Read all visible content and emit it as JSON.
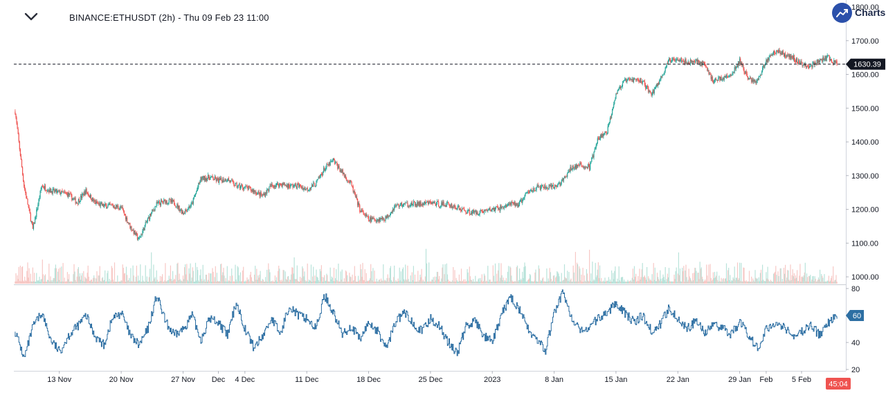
{
  "header": {
    "symbol": "BINANCE:ETHUSDT (2h) - Thu 09 Feb 23 11:00",
    "collapse_icon": "chevron-down-icon",
    "logo_icon": "trend-up-icon",
    "logo_text": "Charts",
    "logo_color": "#2b50aa"
  },
  "chart_data": [
    {
      "type": "candlestick",
      "symbol": "BINANCE:ETHUSDT",
      "interval": "2h",
      "y_ticks": [
        1000,
        1100,
        1200,
        1300,
        1400,
        1500,
        1600,
        1700,
        1800
      ],
      "y_tick_labels": [
        "1000.00",
        "1100.00",
        "1200.00",
        "1300.00",
        "1400.00",
        "1500.00",
        "1600.00",
        "1700.00",
        "1800.00"
      ],
      "ylim": [
        990,
        1800
      ],
      "x_labels": [
        {
          "label": "13 Nov",
          "day": 3
        },
        {
          "label": "20 Nov",
          "day": 10
        },
        {
          "label": "27 Nov",
          "day": 17
        },
        {
          "label": "Dec",
          "day": 21
        },
        {
          "label": "4 Dec",
          "day": 24
        },
        {
          "label": "11 Dec",
          "day": 31
        },
        {
          "label": "18 Dec",
          "day": 38
        },
        {
          "label": "25 Dec",
          "day": 45
        },
        {
          "label": "2023",
          "day": 52
        },
        {
          "label": "8 Jan",
          "day": 59
        },
        {
          "label": "15 Jan",
          "day": 66
        },
        {
          "label": "22 Jan",
          "day": 73
        },
        {
          "label": "29 Jan",
          "day": 80
        },
        {
          "label": "Feb",
          "day": 83
        },
        {
          "label": "5 Feb",
          "day": 87
        }
      ],
      "x_range_days": [
        -2.15,
        91.7
      ],
      "daily_close": [
        [
          -2,
          1490
        ],
        [
          -1,
          1270
        ],
        [
          0,
          1140
        ],
        [
          1,
          1270
        ],
        [
          2,
          1255
        ],
        [
          3,
          1250
        ],
        [
          4,
          1245
        ],
        [
          5,
          1220
        ],
        [
          6,
          1255
        ],
        [
          7,
          1220
        ],
        [
          8,
          1210
        ],
        [
          9,
          1210
        ],
        [
          10,
          1205
        ],
        [
          11,
          1150
        ],
        [
          12,
          1110
        ],
        [
          13,
          1170
        ],
        [
          14,
          1215
        ],
        [
          15,
          1225
        ],
        [
          16,
          1220
        ],
        [
          17,
          1190
        ],
        [
          18,
          1215
        ],
        [
          19,
          1290
        ],
        [
          20,
          1295
        ],
        [
          21,
          1285
        ],
        [
          22,
          1290
        ],
        [
          23,
          1270
        ],
        [
          24,
          1265
        ],
        [
          25,
          1255
        ],
        [
          26,
          1240
        ],
        [
          27,
          1270
        ],
        [
          28,
          1275
        ],
        [
          29,
          1270
        ],
        [
          30,
          1270
        ],
        [
          31,
          1260
        ],
        [
          32,
          1275
        ],
        [
          33,
          1320
        ],
        [
          34,
          1345
        ],
        [
          35,
          1310
        ],
        [
          36,
          1275
        ],
        [
          37,
          1200
        ],
        [
          38,
          1170
        ],
        [
          39,
          1170
        ],
        [
          40,
          1175
        ],
        [
          41,
          1210
        ],
        [
          42,
          1215
        ],
        [
          43,
          1215
        ],
        [
          44,
          1215
        ],
        [
          45,
          1220
        ],
        [
          46,
          1215
        ],
        [
          47,
          1215
        ],
        [
          48,
          1205
        ],
        [
          49,
          1195
        ],
        [
          50,
          1190
        ],
        [
          51,
          1195
        ],
        [
          52,
          1200
        ],
        [
          53,
          1205
        ],
        [
          54,
          1215
        ],
        [
          55,
          1215
        ],
        [
          56,
          1250
        ],
        [
          57,
          1265
        ],
        [
          58,
          1265
        ],
        [
          59,
          1265
        ],
        [
          60,
          1285
        ],
        [
          61,
          1325
        ],
        [
          62,
          1330
        ],
        [
          63,
          1325
        ],
        [
          64,
          1410
        ],
        [
          65,
          1430
        ],
        [
          66,
          1545
        ],
        [
          67,
          1580
        ],
        [
          68,
          1585
        ],
        [
          69,
          1580
        ],
        [
          70,
          1540
        ],
        [
          71,
          1585
        ],
        [
          72,
          1640
        ],
        [
          73,
          1650
        ],
        [
          74,
          1635
        ],
        [
          75,
          1640
        ],
        [
          76,
          1630
        ],
        [
          77,
          1580
        ],
        [
          78,
          1590
        ],
        [
          79,
          1595
        ],
        [
          80,
          1640
        ],
        [
          81,
          1585
        ],
        [
          82,
          1580
        ],
        [
          83,
          1640
        ],
        [
          84,
          1670
        ],
        [
          85,
          1660
        ],
        [
          86,
          1650
        ],
        [
          87,
          1630
        ],
        [
          88,
          1625
        ],
        [
          89,
          1640
        ],
        [
          90,
          1650
        ],
        [
          91,
          1630
        ]
      ],
      "last_price": 1630.39,
      "last_price_label": "1630.39",
      "colors": {
        "up": "#26a69a",
        "down": "#ef5350",
        "volume_up": "#b9e3da",
        "volume_down": "#f7c8c5"
      },
      "has_volume": true,
      "grid": false
    },
    {
      "type": "line",
      "name": "oscillator",
      "y_ticks": [
        20,
        40,
        60,
        80
      ],
      "y_tick_labels": [
        "20",
        "40",
        "60",
        "80"
      ],
      "ylim": [
        20,
        80
      ],
      "last_value": 60,
      "last_value_label": "60",
      "color": "#2d6fa3",
      "daily_values": [
        [
          -2,
          48
        ],
        [
          -1,
          28
        ],
        [
          0,
          52
        ],
        [
          1,
          62
        ],
        [
          2,
          42
        ],
        [
          3,
          33
        ],
        [
          4,
          45
        ],
        [
          5,
          52
        ],
        [
          6,
          60
        ],
        [
          7,
          45
        ],
        [
          8,
          38
        ],
        [
          9,
          58
        ],
        [
          10,
          62
        ],
        [
          11,
          45
        ],
        [
          12,
          38
        ],
        [
          13,
          50
        ],
        [
          14,
          75
        ],
        [
          15,
          55
        ],
        [
          16,
          45
        ],
        [
          17,
          50
        ],
        [
          18,
          60
        ],
        [
          19,
          42
        ],
        [
          20,
          58
        ],
        [
          21,
          55
        ],
        [
          22,
          45
        ],
        [
          23,
          70
        ],
        [
          24,
          50
        ],
        [
          25,
          36
        ],
        [
          26,
          45
        ],
        [
          27,
          58
        ],
        [
          28,
          46
        ],
        [
          29,
          68
        ],
        [
          30,
          60
        ],
        [
          31,
          58
        ],
        [
          32,
          50
        ],
        [
          33,
          75
        ],
        [
          34,
          62
        ],
        [
          35,
          46
        ],
        [
          36,
          52
        ],
        [
          37,
          42
        ],
        [
          38,
          55
        ],
        [
          39,
          48
        ],
        [
          40,
          36
        ],
        [
          41,
          55
        ],
        [
          42,
          62
        ],
        [
          43,
          55
        ],
        [
          44,
          48
        ],
        [
          45,
          58
        ],
        [
          46,
          52
        ],
        [
          47,
          40
        ],
        [
          48,
          32
        ],
        [
          49,
          52
        ],
        [
          50,
          56
        ],
        [
          51,
          45
        ],
        [
          52,
          40
        ],
        [
          53,
          60
        ],
        [
          54,
          74
        ],
        [
          55,
          65
        ],
        [
          56,
          50
        ],
        [
          57,
          42
        ],
        [
          58,
          34
        ],
        [
          59,
          62
        ],
        [
          60,
          78
        ],
        [
          61,
          56
        ],
        [
          62,
          48
        ],
        [
          63,
          52
        ],
        [
          64,
          58
        ],
        [
          65,
          62
        ],
        [
          66,
          70
        ],
        [
          67,
          62
        ],
        [
          68,
          55
        ],
        [
          69,
          60
        ],
        [
          70,
          48
        ],
        [
          71,
          54
        ],
        [
          72,
          66
        ],
        [
          73,
          58
        ],
        [
          74,
          50
        ],
        [
          75,
          56
        ],
        [
          76,
          48
        ],
        [
          77,
          52
        ],
        [
          78,
          52
        ],
        [
          79,
          46
        ],
        [
          80,
          55
        ],
        [
          81,
          45
        ],
        [
          82,
          36
        ],
        [
          83,
          50
        ],
        [
          84,
          55
        ],
        [
          85,
          52
        ],
        [
          86,
          44
        ],
        [
          87,
          48
        ],
        [
          88,
          52
        ],
        [
          89,
          46
        ],
        [
          90,
          55
        ],
        [
          91,
          60
        ]
      ]
    }
  ],
  "countdown_label": "45:04",
  "countdown_color": "#ef5350"
}
